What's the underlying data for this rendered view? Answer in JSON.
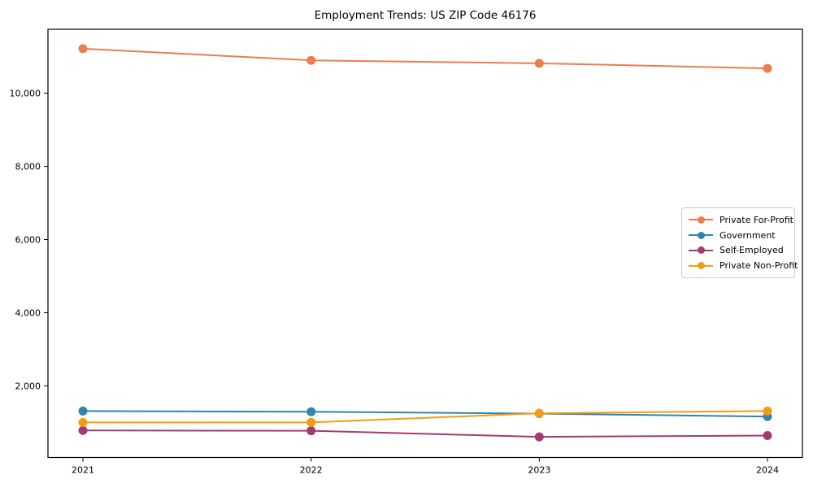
{
  "chart_data": {
    "type": "line",
    "title": "Employment Trends: US ZIP Code 46176",
    "categories": [
      "2021",
      "2022",
      "2023",
      "2024"
    ],
    "series": [
      {
        "name": "Private For-Profit",
        "color": "#ED7D4E",
        "values": [
          11220,
          10900,
          10820,
          10680
        ]
      },
      {
        "name": "Government",
        "color": "#2E86AB",
        "values": [
          1310,
          1290,
          1240,
          1160
        ]
      },
      {
        "name": "Self-Employed",
        "color": "#A23B72",
        "values": [
          780,
          770,
          605,
          640
        ]
      },
      {
        "name": "Private Non-Profit",
        "color": "#F39C12",
        "values": [
          1000,
          1000,
          1250,
          1310
        ]
      }
    ],
    "xlabel": "",
    "ylabel": "",
    "ylim": [
      40,
      11750
    ],
    "yticks": {
      "values": [
        2000,
        4000,
        6000,
        8000,
        10000
      ],
      "labels": [
        "2,000",
        "4,000",
        "6,000",
        "8,000",
        "10,000"
      ]
    },
    "grid": false,
    "legend_position": "center right",
    "axis_color": "#000000",
    "background": "#ffffff"
  }
}
